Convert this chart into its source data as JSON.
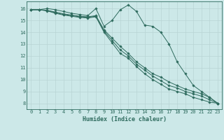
{
  "xlabel": "Humidex (Indice chaleur)",
  "background_color": "#cce8e8",
  "grid_color": "#b8d4d4",
  "line_color": "#2e6b5e",
  "xlim": [
    -0.5,
    23.5
  ],
  "ylim": [
    7.5,
    16.6
  ],
  "xticks": [
    0,
    1,
    2,
    3,
    4,
    5,
    6,
    7,
    8,
    9,
    10,
    11,
    12,
    13,
    14,
    15,
    16,
    17,
    18,
    19,
    20,
    21,
    22,
    23
  ],
  "yticks": [
    8,
    9,
    10,
    11,
    12,
    13,
    14,
    15,
    16
  ],
  "lines": [
    [
      15.9,
      15.9,
      16.0,
      15.9,
      15.75,
      15.6,
      15.5,
      15.4,
      16.0,
      14.5,
      15.0,
      15.9,
      16.3,
      15.75,
      14.6,
      14.5,
      14.0,
      13.0,
      11.5,
      10.5,
      9.5,
      9.0,
      8.5,
      8.0
    ],
    [
      15.9,
      15.9,
      15.85,
      15.7,
      15.55,
      15.45,
      15.35,
      15.3,
      15.4,
      14.2,
      13.5,
      12.8,
      12.2,
      11.5,
      11.0,
      10.5,
      10.2,
      9.8,
      9.5,
      9.2,
      9.0,
      8.8,
      8.5,
      8.0
    ],
    [
      15.9,
      15.9,
      15.82,
      15.65,
      15.5,
      15.4,
      15.3,
      15.25,
      15.35,
      14.1,
      13.3,
      12.5,
      12.0,
      11.3,
      10.8,
      10.3,
      9.9,
      9.5,
      9.3,
      9.0,
      8.8,
      8.6,
      8.3,
      8.0
    ],
    [
      15.9,
      15.9,
      15.8,
      15.6,
      15.45,
      15.35,
      15.25,
      15.2,
      15.3,
      14.0,
      13.1,
      12.2,
      11.8,
      11.1,
      10.5,
      10.0,
      9.6,
      9.2,
      9.0,
      8.8,
      8.5,
      8.3,
      8.1,
      8.0
    ]
  ]
}
